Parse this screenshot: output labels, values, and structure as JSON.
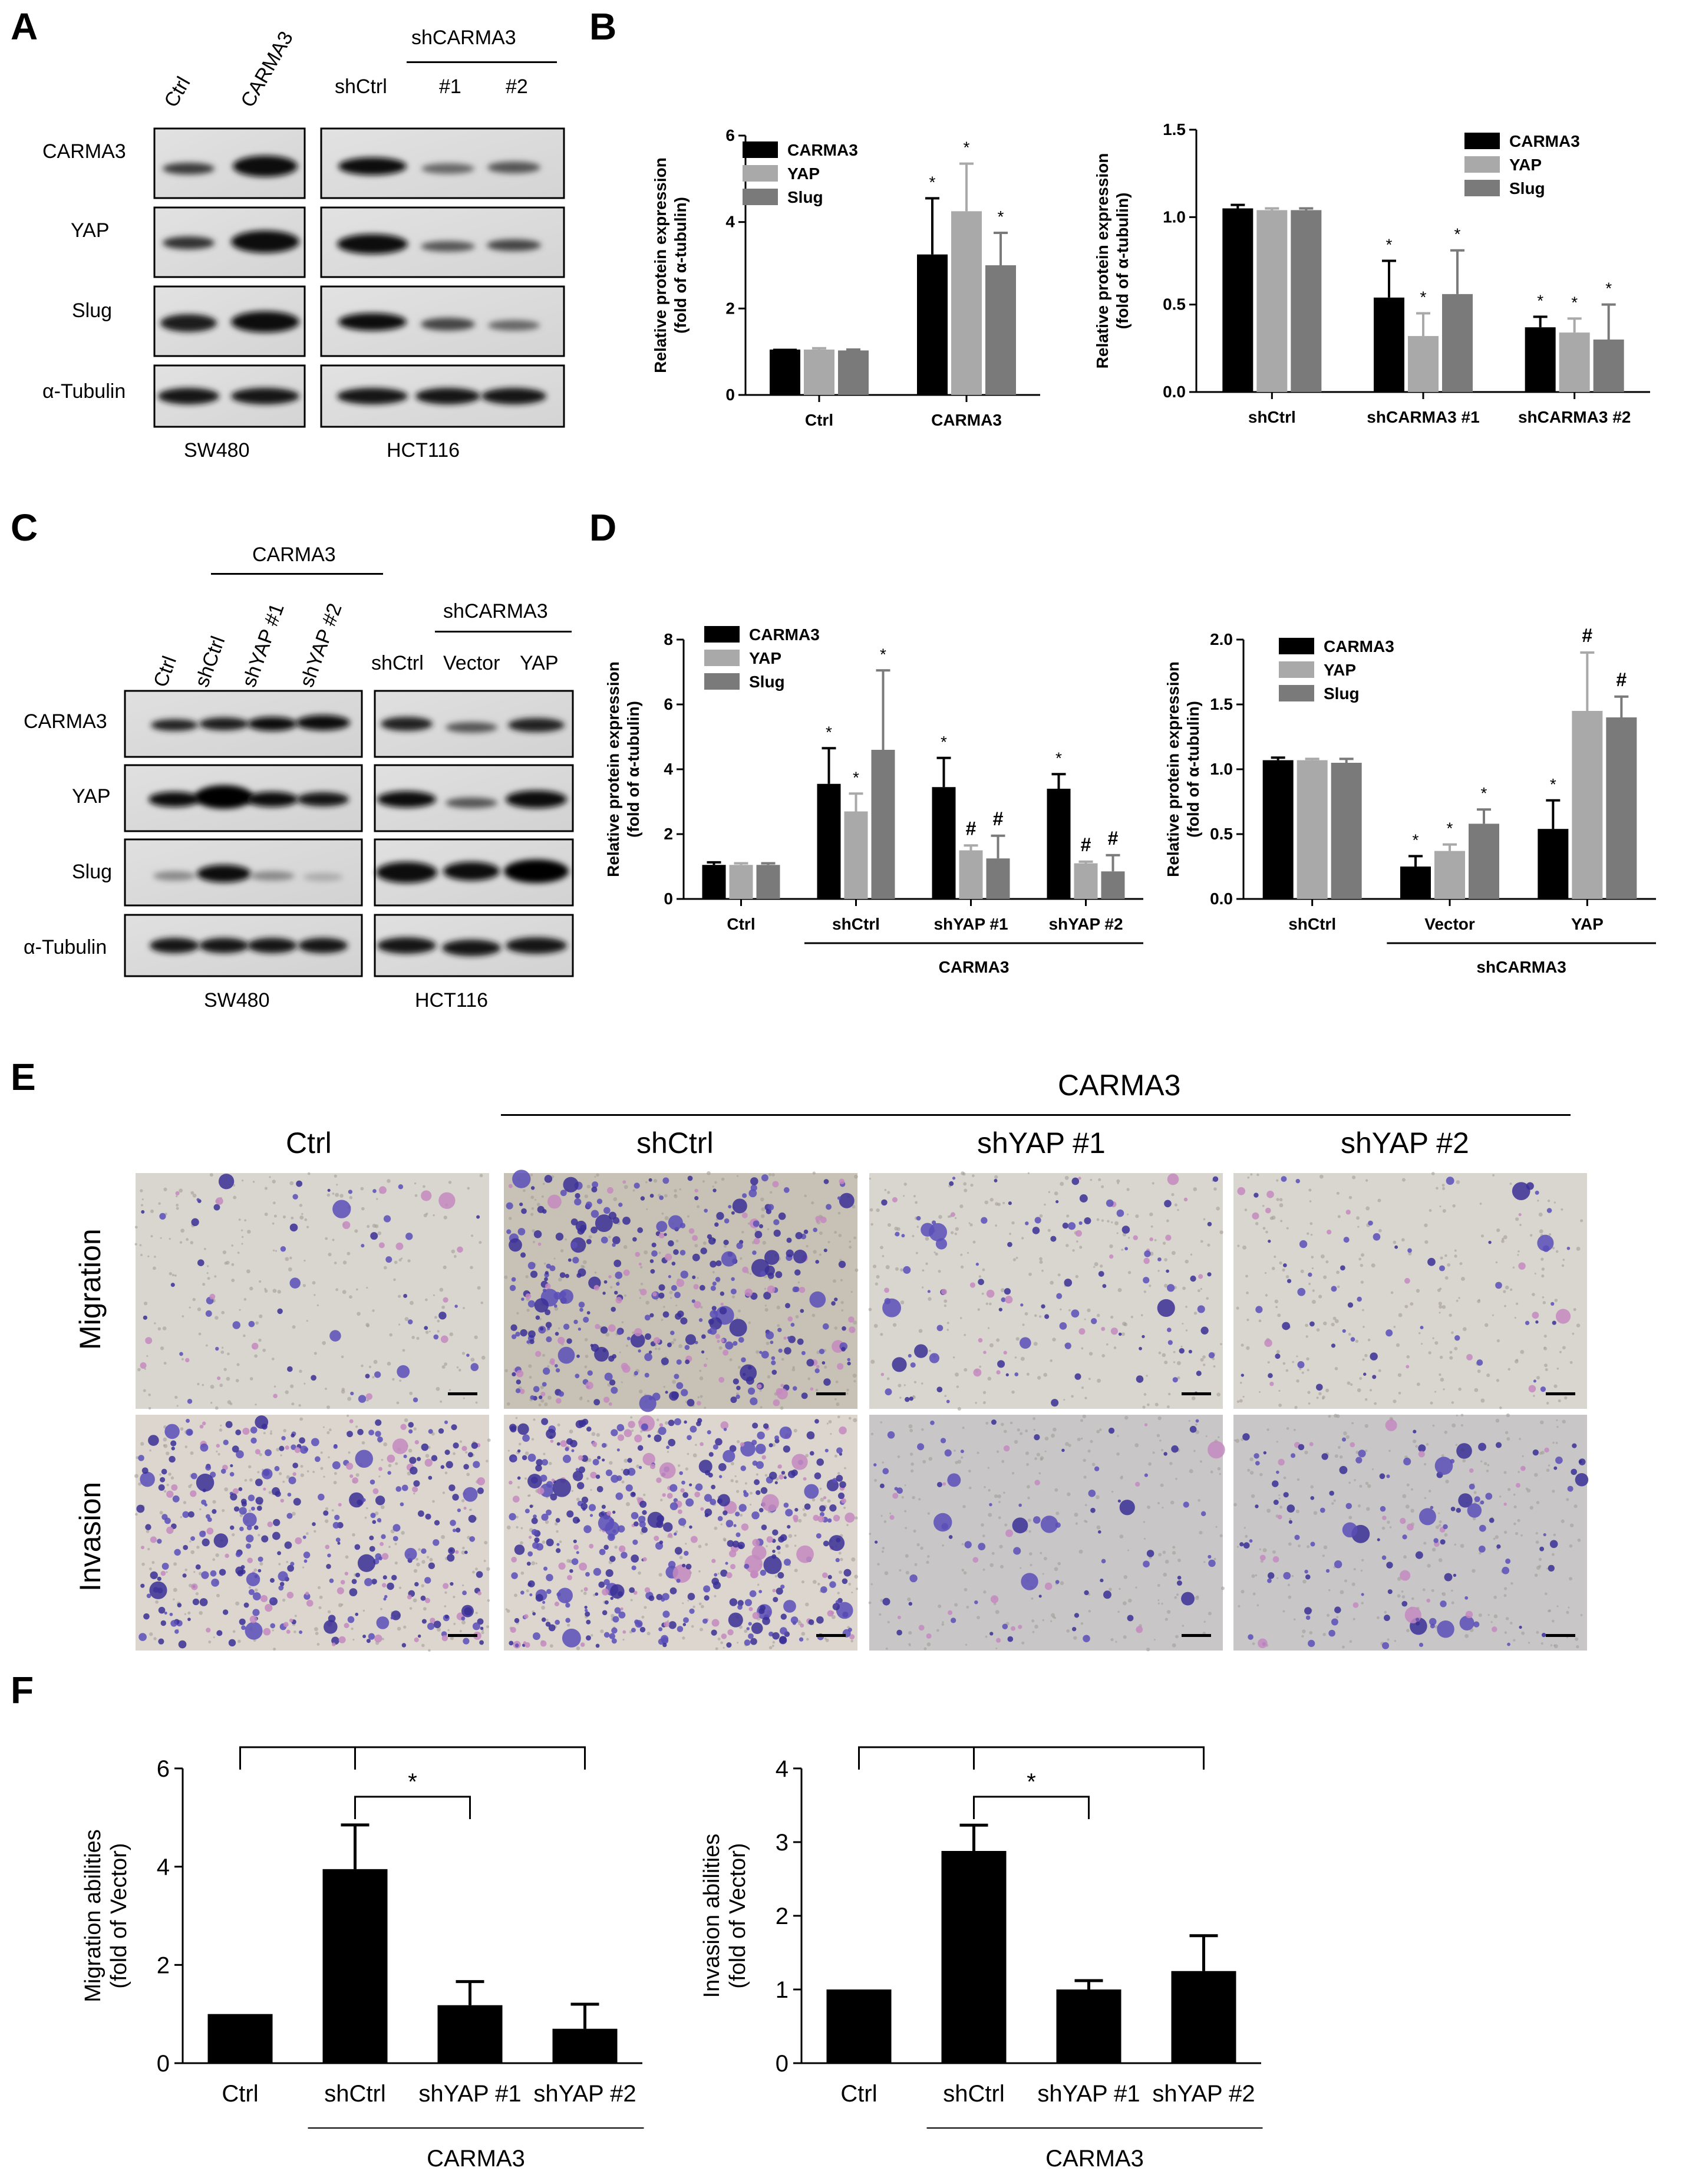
{
  "panels": {
    "A": "A",
    "B": "B",
    "C": "C",
    "D": "D",
    "E": "E",
    "F": "F"
  },
  "colors": {
    "carma3": "#000000",
    "yap": "#a9a9a9",
    "slug": "#7a7a7a",
    "bar_f": "#000000",
    "stain": "#5a4fb8",
    "stain_dark": "#3a2f95",
    "pink": "#c48ac0"
  },
  "panel_a": {
    "lanes_left": [
      "Ctrl",
      "CARMA3"
    ],
    "group_right": "shCARMA3",
    "lanes_right": [
      "shCtrl",
      "#1",
      "#2"
    ],
    "rows": [
      "CARMA3",
      "YAP",
      "Slug",
      "α-Tubulin"
    ],
    "cell_left": "SW480",
    "cell_right": "HCT116"
  },
  "panel_c": {
    "group_left": "CARMA3",
    "lanes_left": [
      "Ctrl",
      "shCtrl",
      "shYAP #1",
      "shYAP #2"
    ],
    "group_right": "shCARMA3",
    "lanes_right": [
      "shCtrl",
      "Vector",
      "YAP"
    ],
    "rows": [
      "CARMA3",
      "YAP",
      "Slug",
      "α-Tubulin"
    ],
    "cell_left": "SW480",
    "cell_right": "HCT116"
  },
  "panel_e": {
    "group_label": "CARMA3",
    "columns": [
      "Ctrl",
      "shCtrl",
      "shYAP #1",
      "shYAP #2"
    ],
    "rows": [
      "Migration",
      "Invasion"
    ]
  },
  "chart_data": [
    {
      "id": "B-left",
      "type": "bar",
      "ylabel": "Relative protein expression (fold of α-tubulin)",
      "ylabel_lines": [
        "Relative protein expression",
        "(fold of α-tubulin)"
      ],
      "ylim": [
        0,
        6
      ],
      "yticks": [
        "0",
        "2",
        "4",
        "6"
      ],
      "categories": [
        "Ctrl",
        "CARMA3"
      ],
      "series": [
        {
          "name": "CARMA3",
          "values": [
            1.05,
            3.25
          ],
          "errors": [
            0,
            1.3
          ]
        },
        {
          "name": "YAP",
          "values": [
            1.05,
            4.25
          ],
          "errors": [
            0.03,
            1.1
          ]
        },
        {
          "name": "Slug",
          "values": [
            1.03,
            3.0
          ],
          "errors": [
            0.02,
            0.75
          ]
        }
      ],
      "annotations": [
        [
          "",
          ""
        ],
        [
          "*",
          "*",
          "*"
        ]
      ],
      "legend": "top-left"
    },
    {
      "id": "B-right",
      "type": "bar",
      "ylabel": "Relative protein expression (fold of α-tubulin)",
      "ylabel_lines": [
        "Relative protein expression",
        "(fold of α-tubulin)"
      ],
      "ylim": [
        0,
        1.5
      ],
      "yticks": [
        "0.0",
        "0.5",
        "1.0",
        "1.5"
      ],
      "categories": [
        "shCtrl",
        "shCARMA3 #1",
        "shCARMA3 #2"
      ],
      "series": [
        {
          "name": "CARMA3",
          "values": [
            1.05,
            0.54,
            0.37
          ],
          "errors": [
            0.02,
            0.21,
            0.06
          ]
        },
        {
          "name": "YAP",
          "values": [
            1.04,
            0.32,
            0.34
          ],
          "errors": [
            0.01,
            0.13,
            0.08
          ]
        },
        {
          "name": "Slug",
          "values": [
            1.04,
            0.56,
            0.3
          ],
          "errors": [
            0.01,
            0.25,
            0.2
          ]
        }
      ],
      "annotations": [
        [
          "",
          "",
          ""
        ],
        [
          "*",
          "*",
          "*"
        ],
        [
          "*",
          "*",
          "*"
        ]
      ],
      "legend": "top-right"
    },
    {
      "id": "D-left",
      "type": "bar",
      "ylabel": "Relative protein expression (fold of α-tubulin)",
      "ylabel_lines": [
        "Relative protein expression",
        "(fold of α-tubulin)"
      ],
      "ylim": [
        0,
        8
      ],
      "yticks": [
        "0",
        "2",
        "4",
        "6",
        "8"
      ],
      "categories": [
        "Ctrl",
        "shCtrl",
        "shYAP #1",
        "shYAP #2"
      ],
      "group_label": "CARMA3",
      "series": [
        {
          "name": "CARMA3",
          "values": [
            1.05,
            3.55,
            3.45,
            3.4
          ],
          "errors": [
            0.08,
            1.1,
            0.9,
            0.45
          ]
        },
        {
          "name": "YAP",
          "values": [
            1.05,
            2.7,
            1.5,
            1.1
          ],
          "errors": [
            0.05,
            0.55,
            0.15,
            0.05
          ]
        },
        {
          "name": "Slug",
          "values": [
            1.05,
            4.6,
            1.25,
            0.85
          ],
          "errors": [
            0.05,
            2.45,
            0.7,
            0.5
          ]
        }
      ],
      "annotations": [
        [
          "",
          "",
          ""
        ],
        [
          "*",
          "*",
          "*"
        ],
        [
          "*",
          "#",
          "#"
        ],
        [
          "*",
          "#",
          "#"
        ]
      ],
      "legend": "top-left"
    },
    {
      "id": "D-right",
      "type": "bar",
      "ylabel": "Relative protein expression (fold of α-tubulin)",
      "ylabel_lines": [
        "Relative protein expression",
        "(fold of α-tubulin)"
      ],
      "ylim": [
        0,
        2.0
      ],
      "yticks": [
        "0.0",
        "0.5",
        "1.0",
        "1.5",
        "2.0"
      ],
      "categories": [
        "shCtrl",
        "Vector",
        "YAP"
      ],
      "group_label": "shCARMA3",
      "series": [
        {
          "name": "CARMA3",
          "values": [
            1.07,
            0.25,
            0.54
          ],
          "errors": [
            0.02,
            0.08,
            0.22
          ]
        },
        {
          "name": "YAP",
          "values": [
            1.07,
            0.37,
            1.45
          ],
          "errors": [
            0.01,
            0.05,
            0.45
          ]
        },
        {
          "name": "Slug",
          "values": [
            1.05,
            0.58,
            1.4
          ],
          "errors": [
            0.03,
            0.11,
            0.16
          ]
        }
      ],
      "annotations": [
        [
          "",
          "",
          ""
        ],
        [
          "*",
          "*",
          "*"
        ],
        [
          "*",
          "#",
          "#"
        ]
      ],
      "legend": "top-left"
    },
    {
      "id": "F-left",
      "type": "bar",
      "ylabel": "Migration abilities (fold of Vector)",
      "ylabel_lines": [
        "Migration abilities",
        "(fold of Vector)"
      ],
      "ylim": [
        0,
        6
      ],
      "yticks": [
        "0",
        "2",
        "4",
        "6"
      ],
      "categories": [
        "Ctrl",
        "shCtrl",
        "shYAP #1",
        "shYAP #2"
      ],
      "group_label": "CARMA3",
      "values": [
        1.0,
        3.95,
        1.18,
        0.7
      ],
      "errors": [
        0,
        0.9,
        0.48,
        0.5
      ],
      "significance": [
        [
          "Ctrl",
          "shCtrl",
          "*"
        ],
        [
          "shCtrl",
          "shYAP #1",
          "*"
        ],
        [
          "shCtrl",
          "shYAP #2",
          "*"
        ]
      ]
    },
    {
      "id": "F-right",
      "type": "bar",
      "ylabel": "Invasion abilities (fold of Vector)",
      "ylabel_lines": [
        "Invasion abilities",
        "(fold of Vector)"
      ],
      "ylim": [
        0,
        4
      ],
      "yticks": [
        "0",
        "1",
        "2",
        "3",
        "4"
      ],
      "categories": [
        "Ctrl",
        "shCtrl",
        "shYAP #1",
        "shYAP #2"
      ],
      "group_label": "CARMA3",
      "values": [
        1.0,
        2.88,
        1.0,
        1.25
      ],
      "errors": [
        0,
        0.35,
        0.12,
        0.48
      ],
      "significance": [
        [
          "Ctrl",
          "shCtrl",
          "*"
        ],
        [
          "shCtrl",
          "shYAP #1",
          "*"
        ],
        [
          "shCtrl",
          "shYAP #2",
          "*"
        ]
      ]
    }
  ]
}
